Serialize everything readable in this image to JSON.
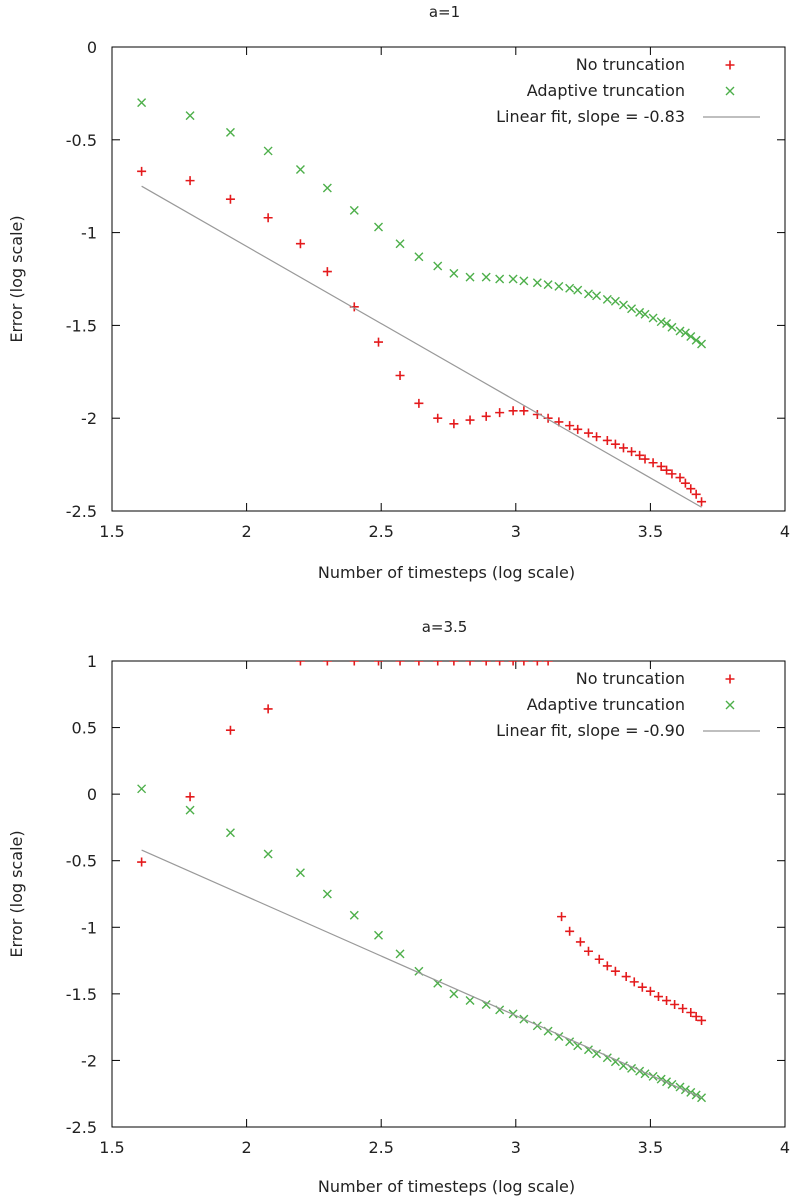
{
  "chart_data": [
    {
      "type": "scatter",
      "title": "a=1",
      "xlabel": "Number of timesteps (log scale)",
      "ylabel": "Error (log scale)",
      "xlim": [
        1.5,
        4
      ],
      "ylim": [
        -2.5,
        0
      ],
      "xticks": [
        "1.5",
        "2",
        "2.5",
        "3",
        "3.5",
        "4"
      ],
      "yticks": [
        "0",
        "-0.5",
        "-1",
        "-1.5",
        "-2",
        "-2.5"
      ],
      "legend_position": "top-right",
      "grid": false,
      "series": [
        {
          "name": "No truncation",
          "marker": "plus",
          "color": "#e41a1c",
          "x": [
            1.61,
            1.79,
            1.94,
            2.08,
            2.2,
            2.3,
            2.4,
            2.49,
            2.57,
            2.64,
            2.71,
            2.77,
            2.83,
            2.89,
            2.94,
            2.99,
            3.03,
            3.08,
            3.12,
            3.16,
            3.2,
            3.23,
            3.27,
            3.3,
            3.34,
            3.37,
            3.4,
            3.43,
            3.46,
            3.48,
            3.51,
            3.54,
            3.56,
            3.58,
            3.61,
            3.63,
            3.65,
            3.67,
            3.69
          ],
          "y": [
            -0.67,
            -0.72,
            -0.82,
            -0.92,
            -1.06,
            -1.21,
            -1.4,
            -1.59,
            -1.77,
            -1.92,
            -2.0,
            -2.03,
            -2.01,
            -1.99,
            -1.97,
            -1.96,
            -1.96,
            -1.98,
            -2.0,
            -2.02,
            -2.04,
            -2.06,
            -2.08,
            -2.1,
            -2.12,
            -2.14,
            -2.16,
            -2.18,
            -2.2,
            -2.22,
            -2.24,
            -2.26,
            -2.28,
            -2.3,
            -2.32,
            -2.35,
            -2.38,
            -2.41,
            -2.45
          ]
        },
        {
          "name": "Adaptive truncation",
          "marker": "cross",
          "color": "#4daf4a",
          "x": [
            1.61,
            1.79,
            1.94,
            2.08,
            2.2,
            2.3,
            2.4,
            2.49,
            2.57,
            2.64,
            2.71,
            2.77,
            2.83,
            2.89,
            2.94,
            2.99,
            3.03,
            3.08,
            3.12,
            3.16,
            3.2,
            3.23,
            3.27,
            3.3,
            3.34,
            3.37,
            3.4,
            3.43,
            3.46,
            3.48,
            3.51,
            3.54,
            3.56,
            3.58,
            3.61,
            3.63,
            3.65,
            3.67,
            3.69
          ],
          "y": [
            -0.3,
            -0.37,
            -0.46,
            -0.56,
            -0.66,
            -0.76,
            -0.88,
            -0.97,
            -1.06,
            -1.13,
            -1.18,
            -1.22,
            -1.24,
            -1.24,
            -1.25,
            -1.25,
            -1.26,
            -1.27,
            -1.28,
            -1.29,
            -1.3,
            -1.31,
            -1.33,
            -1.34,
            -1.36,
            -1.37,
            -1.39,
            -1.41,
            -1.43,
            -1.44,
            -1.46,
            -1.48,
            -1.49,
            -1.51,
            -1.53,
            -1.54,
            -1.56,
            -1.58,
            -1.6
          ]
        },
        {
          "name": "Linear fit, slope = -0.83",
          "marker": "line",
          "color": "#999999",
          "x": [
            1.61,
            3.69
          ],
          "y": [
            -0.75,
            -2.48
          ]
        }
      ]
    },
    {
      "type": "scatter",
      "title": "a=3.5",
      "xlabel": "Number of timesteps (log scale)",
      "ylabel": "Error (log scale)",
      "xlim": [
        1.5,
        4
      ],
      "ylim": [
        -2.5,
        1
      ],
      "xticks": [
        "1.5",
        "2",
        "2.5",
        "3",
        "3.5",
        "4"
      ],
      "yticks": [
        "1",
        "0.5",
        "0",
        "-0.5",
        "-1",
        "-1.5",
        "-2",
        "-2.5"
      ],
      "legend_position": "top-right",
      "grid": false,
      "series": [
        {
          "name": "No truncation",
          "marker": "plus",
          "color": "#e41a1c",
          "x": [
            1.61,
            1.79,
            1.94,
            2.08,
            2.2,
            2.3,
            2.4,
            2.49,
            2.57,
            2.64,
            2.71,
            2.77,
            2.83,
            2.89,
            2.94,
            2.99,
            3.03,
            3.08,
            3.12,
            3.17,
            3.2,
            3.24,
            3.27,
            3.31,
            3.34,
            3.37,
            3.41,
            3.44,
            3.47,
            3.5,
            3.53,
            3.56,
            3.59,
            3.62,
            3.65,
            3.67,
            3.69
          ],
          "y": [
            -0.51,
            -0.02,
            0.48,
            0.64,
            1.0,
            1.0,
            1.0,
            1.0,
            1.0,
            1.0,
            1.0,
            1.0,
            1.0,
            1.0,
            1.0,
            1.0,
            1.0,
            1.0,
            1.0,
            -0.92,
            -1.03,
            -1.11,
            -1.18,
            -1.24,
            -1.29,
            -1.33,
            -1.37,
            -1.41,
            -1.45,
            -1.48,
            -1.52,
            -1.55,
            -1.58,
            -1.61,
            -1.64,
            -1.67,
            -1.7
          ]
        },
        {
          "name": "Adaptive truncation",
          "marker": "cross",
          "color": "#4daf4a",
          "x": [
            1.61,
            1.79,
            1.94,
            2.08,
            2.2,
            2.3,
            2.4,
            2.49,
            2.57,
            2.64,
            2.71,
            2.77,
            2.83,
            2.89,
            2.94,
            2.99,
            3.03,
            3.08,
            3.12,
            3.16,
            3.2,
            3.23,
            3.27,
            3.3,
            3.34,
            3.37,
            3.4,
            3.43,
            3.46,
            3.48,
            3.51,
            3.54,
            3.56,
            3.58,
            3.61,
            3.63,
            3.65,
            3.67,
            3.69
          ],
          "y": [
            0.04,
            -0.12,
            -0.29,
            -0.45,
            -0.59,
            -0.75,
            -0.91,
            -1.06,
            -1.2,
            -1.33,
            -1.42,
            -1.5,
            -1.55,
            -1.58,
            -1.62,
            -1.65,
            -1.69,
            -1.74,
            -1.78,
            -1.82,
            -1.86,
            -1.89,
            -1.92,
            -1.95,
            -1.98,
            -2.01,
            -2.04,
            -2.06,
            -2.08,
            -2.1,
            -2.12,
            -2.14,
            -2.16,
            -2.18,
            -2.2,
            -2.22,
            -2.24,
            -2.26,
            -2.28
          ]
        },
        {
          "name": "Linear fit, slope = -0.90",
          "marker": "line",
          "color": "#999999",
          "x": [
            1.61,
            3.69
          ],
          "y": [
            -0.42,
            -2.28
          ]
        }
      ]
    }
  ]
}
